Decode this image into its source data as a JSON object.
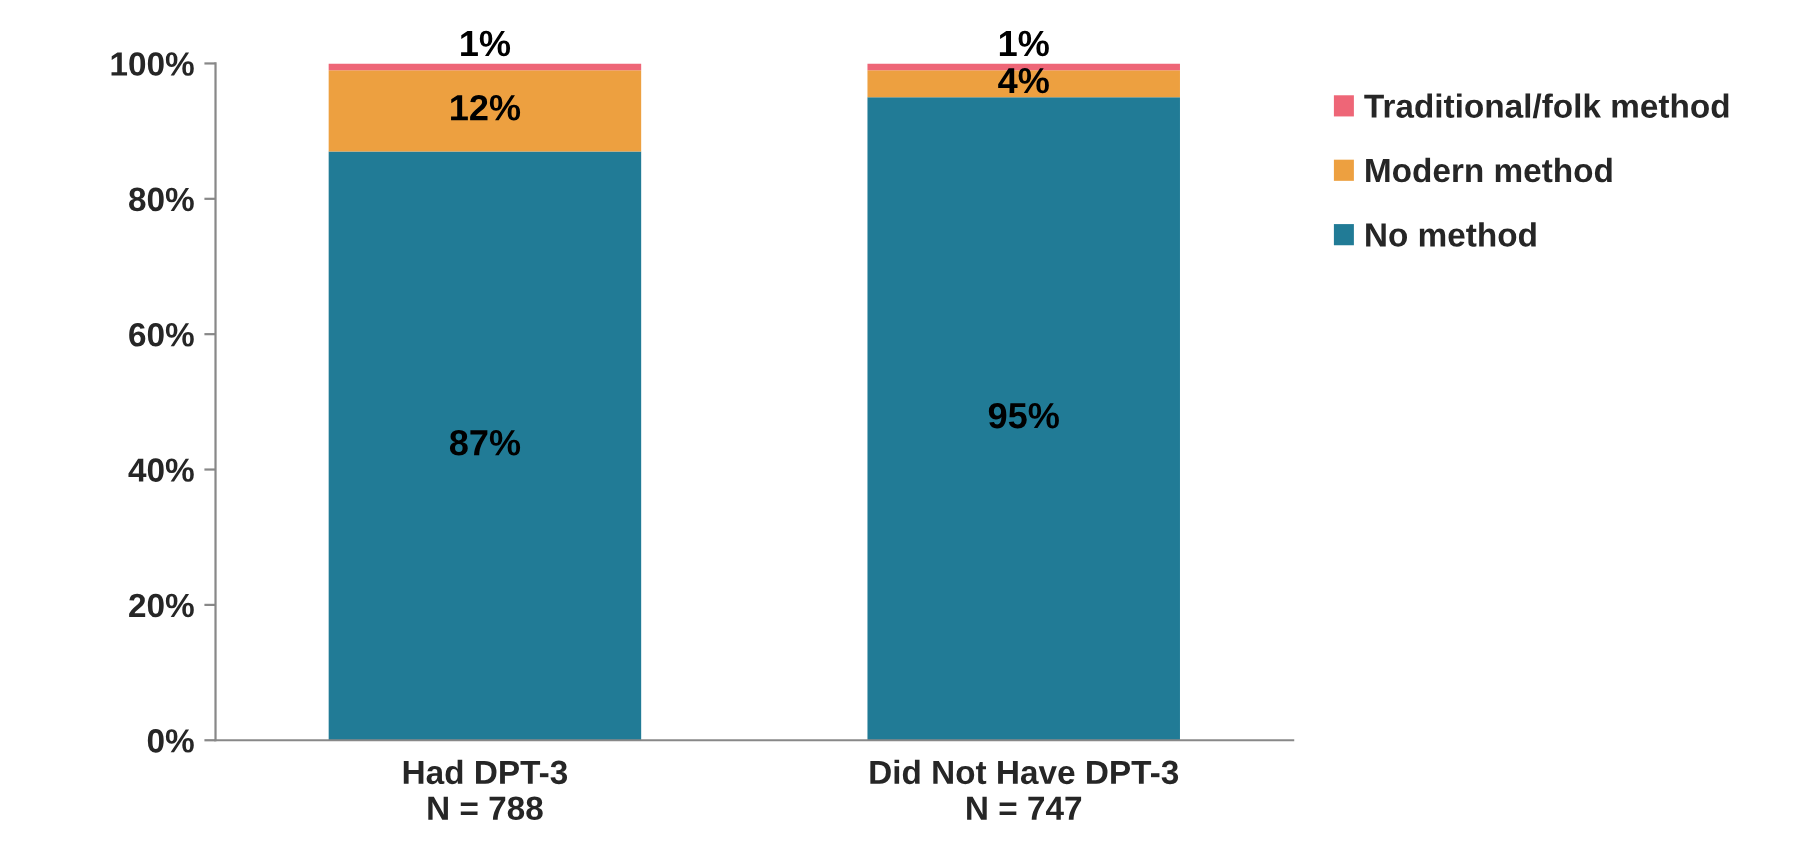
{
  "chart_data": {
    "type": "bar",
    "stacked": true,
    "categories": [
      "Had DPT-3\nN = 788",
      "Did Not Have DPT-3\nN = 747"
    ],
    "series": [
      {
        "name": "No method",
        "color": "#217b96",
        "values": [
          87,
          95
        ],
        "value_labels": [
          "87%",
          "95%"
        ]
      },
      {
        "name": "Modern method",
        "color": "#eda040",
        "values": [
          12,
          4
        ],
        "value_labels": [
          "12%",
          "4%"
        ]
      },
      {
        "name": "Traditional/folk method",
        "color": "#ee6677",
        "values": [
          1,
          1
        ],
        "value_labels": [
          "1%",
          "1%"
        ]
      }
    ],
    "ylim": [
      0,
      100
    ],
    "yticks": [
      {
        "value": 0,
        "label": "0%"
      },
      {
        "value": 20,
        "label": "20%"
      },
      {
        "value": 40,
        "label": "40%"
      },
      {
        "value": 60,
        "label": "60%"
      },
      {
        "value": 80,
        "label": "80%"
      },
      {
        "value": 100,
        "label": "100%"
      }
    ],
    "grid": false,
    "legend": "top right"
  }
}
